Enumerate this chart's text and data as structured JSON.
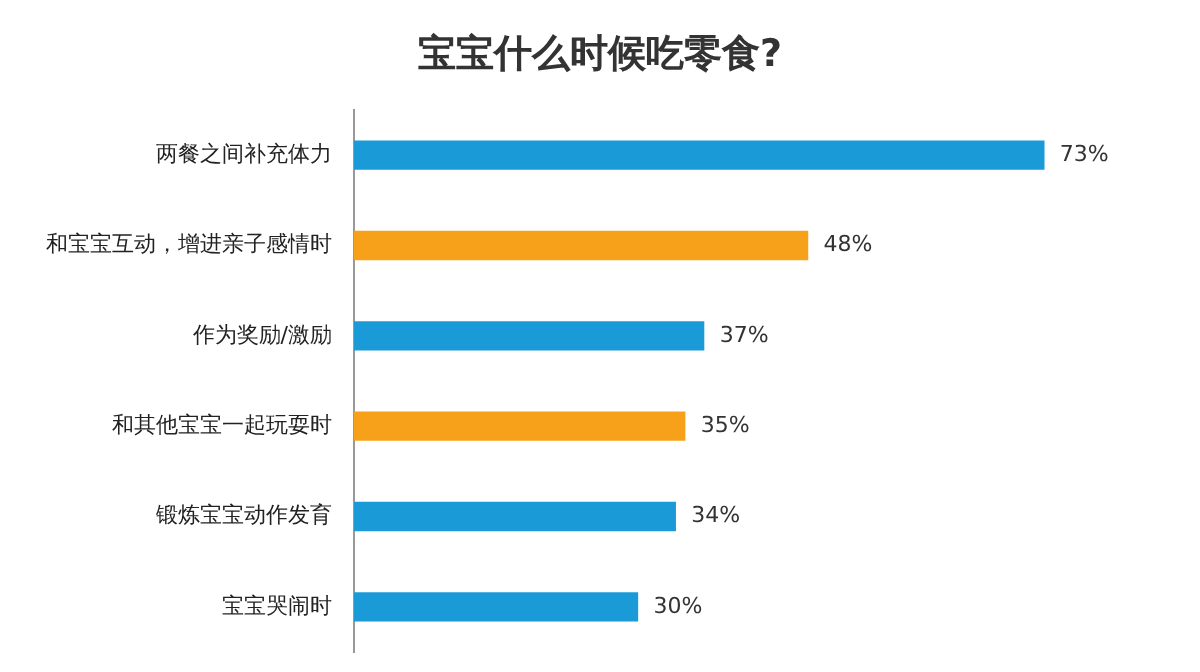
{
  "chart_data": {
    "type": "bar",
    "orientation": "horizontal",
    "title": "宝宝什么时候吃零食?",
    "categories": [
      "两餐之间补充体力",
      "和宝宝互动，增进亲子感情时",
      "作为奖励/激励",
      "和其他宝宝一起玩耍时",
      "锻炼宝宝动作发育",
      "宝宝哭闹时"
    ],
    "values": [
      73,
      48,
      37,
      35,
      34,
      30
    ],
    "colors": [
      "#1b9ad8",
      "#f7a11b",
      "#1b9ad8",
      "#f7a11b",
      "#1b9ad8",
      "#1b9ad8"
    ],
    "value_labels": [
      "73%",
      "48%",
      "37%",
      "35%",
      "34%",
      "30%"
    ],
    "tick_labels": "y",
    "legend": false
  }
}
